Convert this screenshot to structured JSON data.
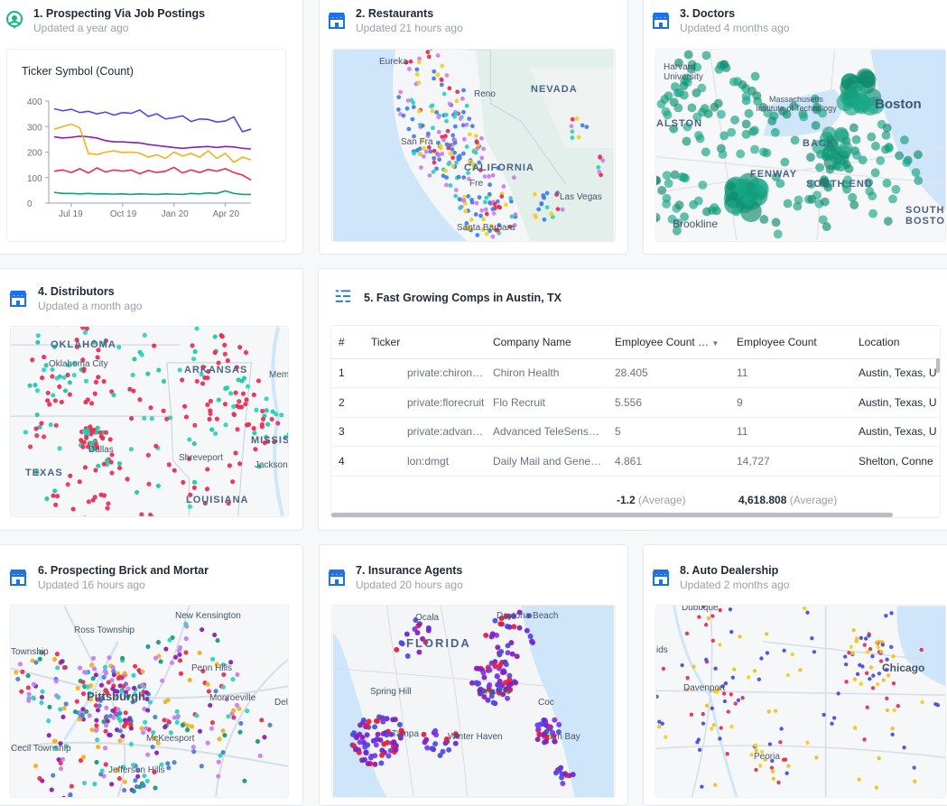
{
  "cards": [
    {
      "title": "1. Prospecting Via Job Postings",
      "updated": "Updated a year ago",
      "icon": "job-postings-icon"
    },
    {
      "title": "2. Restaurants",
      "updated": "Updated 21 hours ago",
      "icon": "storefront-icon"
    },
    {
      "title": "3. Doctors",
      "updated": "Updated 4 months ago",
      "icon": "storefront-icon"
    },
    {
      "title": "4. Distributors",
      "updated": "Updated a month ago",
      "icon": "storefront-icon"
    },
    {
      "title": "5. Fast Growing Comps in Austin, TX",
      "icon": "table-list-icon"
    },
    {
      "title": "6. Prospecting Brick and Mortar",
      "updated": "Updated 16 hours ago",
      "icon": "storefront-icon"
    },
    {
      "title": "7. Insurance Agents",
      "updated": "Updated 20 hours ago",
      "icon": "storefront-icon"
    },
    {
      "title": "8. Auto Dealership",
      "updated": "Updated 2 months ago",
      "icon": "storefront-icon"
    }
  ],
  "maps": {
    "restaurants": [
      "Eureka",
      "Reno",
      "NEVADA",
      "San Fra",
      "CALIFORNIA",
      "Fre",
      "Las Vegas",
      "Santa Barbara"
    ],
    "doctors": [
      "Harvard University",
      "Massachusetts Institute of Technology",
      "Boston",
      "ALSTON",
      "BACK",
      "FENWAY",
      "SOUTH END",
      "Brookline",
      "SOUTH BOSTON"
    ],
    "distributors": [
      "OKLAHOMA",
      "Oklahoma City",
      "ARKANSAS",
      "Memphis",
      "TEXAS",
      "Dallas",
      "Shreveport",
      "MISSISS",
      "Jackson",
      "LOUISIANA"
    ],
    "brick": [
      "New Kensington",
      "Ross Township",
      "Township",
      "Penn Hills",
      "Pittsburgh",
      "Monroeville",
      "McKeesport",
      "Cecil Township",
      "Jefferson Hills",
      "Delm"
    ],
    "insurance": [
      "Ocala",
      "Daytona Beach",
      "FLORIDA",
      "Spring Hill",
      "Orlando",
      "Winter Haven",
      "Palm Bay",
      "Tampa",
      "Coc"
    ],
    "auto": [
      "Dubuque",
      "ids",
      "Davenport",
      "Chicago",
      "Peoria"
    ]
  },
  "chart_data": {
    "type": "line",
    "title": "Ticker Symbol (Count)",
    "xlabel": "",
    "ylabel": "",
    "ylim": [
      0,
      400
    ],
    "yticks": [
      0,
      100,
      200,
      300,
      400
    ],
    "xticks": [
      "Jul 19",
      "Oct 19",
      "Jan 20",
      "Apr 20"
    ],
    "x": [
      0,
      1,
      2,
      3,
      4,
      5,
      6,
      7,
      8,
      9,
      10,
      11,
      12,
      13,
      14,
      15,
      16,
      17,
      18,
      19,
      20,
      21,
      22,
      23
    ],
    "series": [
      {
        "name": "blue",
        "color": "#4a4ee0",
        "values": [
          370,
          362,
          368,
          355,
          360,
          350,
          357,
          345,
          355,
          352,
          365,
          340,
          350,
          330,
          335,
          342,
          320,
          330,
          328,
          318,
          322,
          338,
          280,
          290
        ]
      },
      {
        "name": "purple",
        "color": "#8a1fb8",
        "values": [
          260,
          255,
          258,
          262,
          260,
          255,
          245,
          240,
          240,
          238,
          236,
          230,
          226,
          222,
          218,
          215,
          218,
          220,
          222,
          218,
          222,
          220,
          215,
          212
        ]
      },
      {
        "name": "orange",
        "color": "#f2b21f",
        "values": [
          290,
          300,
          310,
          295,
          195,
          190,
          200,
          205,
          198,
          200,
          196,
          180,
          190,
          175,
          200,
          185,
          195,
          180,
          205,
          175,
          195,
          160,
          180,
          170
        ]
      },
      {
        "name": "red",
        "color": "#ec2c52",
        "values": [
          125,
          130,
          120,
          135,
          118,
          138,
          122,
          130,
          125,
          130,
          115,
          128,
          120,
          125,
          140,
          118,
          130,
          120,
          132,
          125,
          135,
          120,
          110,
          90
        ]
      },
      {
        "name": "green",
        "color": "#129e7b",
        "values": [
          42,
          38,
          38,
          36,
          38,
          36,
          36,
          35,
          36,
          34,
          36,
          35,
          34,
          36,
          35,
          34,
          38,
          36,
          40,
          38,
          48,
          38,
          34,
          34
        ]
      }
    ]
  },
  "table": {
    "columns": [
      "#",
      "Ticker",
      "Company Name",
      "Employee Count …",
      "Employee Count",
      "Location"
    ],
    "rows": [
      [
        "1",
        "private:chironhealth",
        "Chiron Health",
        "28.405",
        "11",
        "Austin, Texas, U"
      ],
      [
        "2",
        "private:florecruit",
        "Flo Recruit",
        "5.556",
        "9",
        "Austin, Texas, U"
      ],
      [
        "3",
        "private:advancedtel…",
        "Advanced TeleSens…",
        "5",
        "11",
        "Austin, Texas, U"
      ],
      [
        "4",
        "lon:dmgt",
        "Daily Mail and Gene…",
        "4.861",
        "14,727",
        "Shelton, Conne"
      ]
    ],
    "averages": {
      "growth": "-1.2",
      "count": "4,618.808",
      "label": "(Average)"
    }
  },
  "colors": {
    "accent": "#1a73e8",
    "icon_green": "#10b981"
  }
}
